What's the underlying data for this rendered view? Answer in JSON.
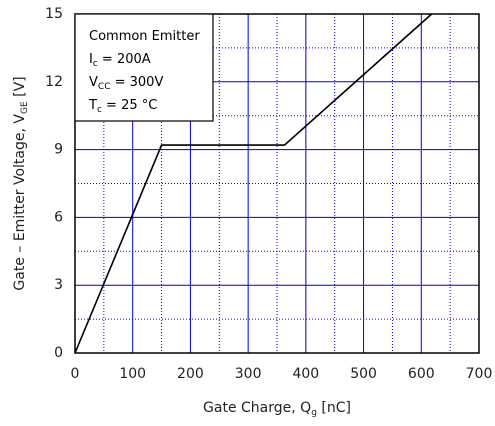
{
  "chart_data": {
    "type": "line",
    "xlabel": [
      "Gate Charge, Q",
      "g",
      " [nC]"
    ],
    "ylabel": [
      "Gate – Emitter Voltage, V",
      "GE",
      " [V]"
    ],
    "annotation": [
      [
        "Common Emitter"
      ],
      [
        "I",
        "c",
        " = 200A"
      ],
      [
        "V",
        "CC",
        " = 300V"
      ],
      [
        "T",
        "c",
        " = 25 °C"
      ]
    ],
    "series": [
      {
        "color": "#000000",
        "x": [
          0,
          150,
          363,
          618
        ],
        "values": [
          0,
          9.2,
          9.2,
          15
        ]
      }
    ],
    "xlim": [
      0,
      700
    ],
    "xticks": [
      0,
      100,
      200,
      300,
      400,
      500,
      600,
      700
    ],
    "ylim": [
      0,
      15
    ],
    "yticks": [
      0,
      3,
      6,
      9,
      12,
      15
    ],
    "grid": true,
    "grid_color": "#0000cc"
  }
}
